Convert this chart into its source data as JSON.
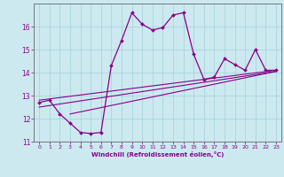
{
  "title": "",
  "xlabel": "Windchill (Refroidissement éolien,°C)",
  "ylabel": "",
  "bg_color": "#cce9f0",
  "line_color": "#880088",
  "grid_color": "#aad4dc",
  "xlim": [
    -0.5,
    23.5
  ],
  "ylim": [
    11,
    17
  ],
  "xticks": [
    0,
    1,
    2,
    3,
    4,
    5,
    6,
    7,
    8,
    9,
    10,
    11,
    12,
    13,
    14,
    15,
    16,
    17,
    18,
    19,
    20,
    21,
    22,
    23
  ],
  "yticks": [
    11,
    12,
    13,
    14,
    15,
    16
  ],
  "x": [
    0,
    1,
    2,
    3,
    4,
    5,
    6,
    7,
    8,
    9,
    10,
    11,
    12,
    13,
    14,
    15,
    16,
    17,
    18,
    19,
    20,
    21,
    22,
    23
  ],
  "y": [
    12.7,
    12.8,
    12.2,
    11.8,
    11.4,
    11.35,
    11.4,
    14.3,
    15.4,
    16.6,
    16.1,
    15.85,
    15.95,
    16.5,
    16.6,
    14.8,
    13.7,
    13.8,
    14.6,
    14.35,
    14.1,
    15.0,
    14.1,
    14.1
  ],
  "line1_x": [
    0,
    23
  ],
  "line1_y": [
    12.5,
    14.05
  ],
  "line2_x": [
    0,
    23
  ],
  "line2_y": [
    12.8,
    14.1
  ],
  "line3_x": [
    3,
    23
  ],
  "line3_y": [
    12.2,
    14.05
  ]
}
